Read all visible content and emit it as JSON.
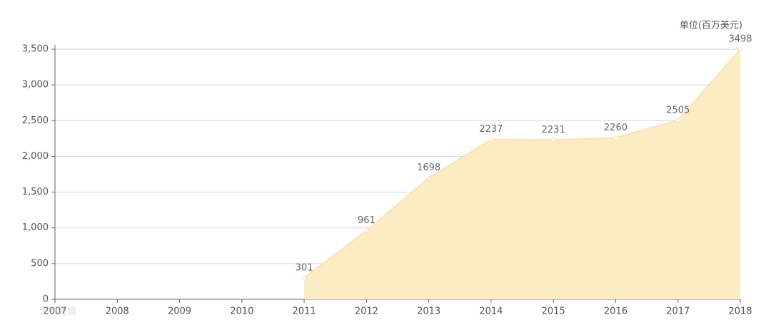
{
  "chart_data": {
    "type": "area",
    "unit_label": "单位(百万美元)",
    "watermark": "大数跨境",
    "categories": [
      "2007",
      "2008",
      "2009",
      "2010",
      "2011",
      "2012",
      "2013",
      "2014",
      "2015",
      "2016",
      "2017",
      "2018"
    ],
    "series": [
      {
        "name": "value",
        "color": "#fbe3b0",
        "fill": "#fdebc6",
        "values": [
          null,
          null,
          null,
          null,
          301,
          961,
          1698,
          2237,
          2231,
          2260,
          2505,
          3498
        ]
      }
    ],
    "ylim": [
      0,
      3500
    ],
    "yticks": [
      0,
      500,
      {
        "value": 1000,
        "label": "1,000"
      },
      {
        "value": 1500,
        "label": "1,500"
      },
      {
        "value": 2000,
        "label": "2,000"
      },
      {
        "value": 2500,
        "label": "2,500"
      },
      {
        "value": 3000,
        "label": "3,000"
      },
      {
        "value": 3500,
        "label": "3,500"
      }
    ],
    "grid": true
  }
}
